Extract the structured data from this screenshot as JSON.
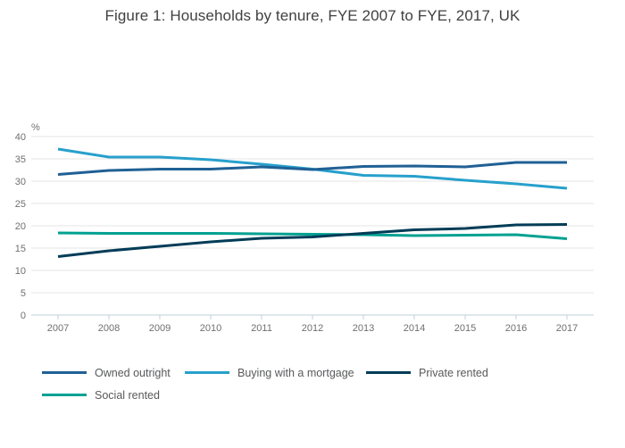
{
  "chart_data": {
    "type": "line",
    "title": "Figure 1: Households by tenure, FYE 2007 to FYE, 2017, UK",
    "ylabel": "%",
    "xlabel": "",
    "categories": [
      "2007",
      "2008",
      "2009",
      "2010",
      "2011",
      "2012",
      "2013",
      "2014",
      "2015",
      "2016",
      "2017"
    ],
    "series": [
      {
        "name": "Owned outright",
        "color": "#206095",
        "values": [
          31.5,
          32.4,
          32.7,
          32.7,
          33.2,
          32.6,
          33.3,
          33.4,
          33.2,
          34.2,
          34.2
        ]
      },
      {
        "name": "Buying with a mortgage",
        "color": "#27a0cc",
        "values": [
          37.2,
          35.4,
          35.4,
          34.8,
          33.8,
          32.7,
          31.3,
          31.1,
          30.2,
          29.4,
          28.4
        ]
      },
      {
        "name": "Private rented",
        "color": "#003c57",
        "values": [
          13.1,
          14.4,
          15.4,
          16.4,
          17.2,
          17.5,
          18.3,
          19.1,
          19.4,
          20.2,
          20.3
        ]
      },
      {
        "name": "Social rented",
        "color": "#00a191",
        "values": [
          18.4,
          18.3,
          18.3,
          18.3,
          18.2,
          18.1,
          18.0,
          17.8,
          17.9,
          18.0,
          17.1
        ]
      }
    ],
    "ylim": [
      0,
      40
    ],
    "yticks": [
      0,
      5,
      10,
      15,
      20,
      25,
      30,
      35,
      40
    ],
    "grid": true,
    "legend_position": "bottom",
    "grid_color": "#e4e4e4",
    "axis_color": "#bfd0d8",
    "tick_text_color": "#6e6f72",
    "title_color": "#414042"
  }
}
